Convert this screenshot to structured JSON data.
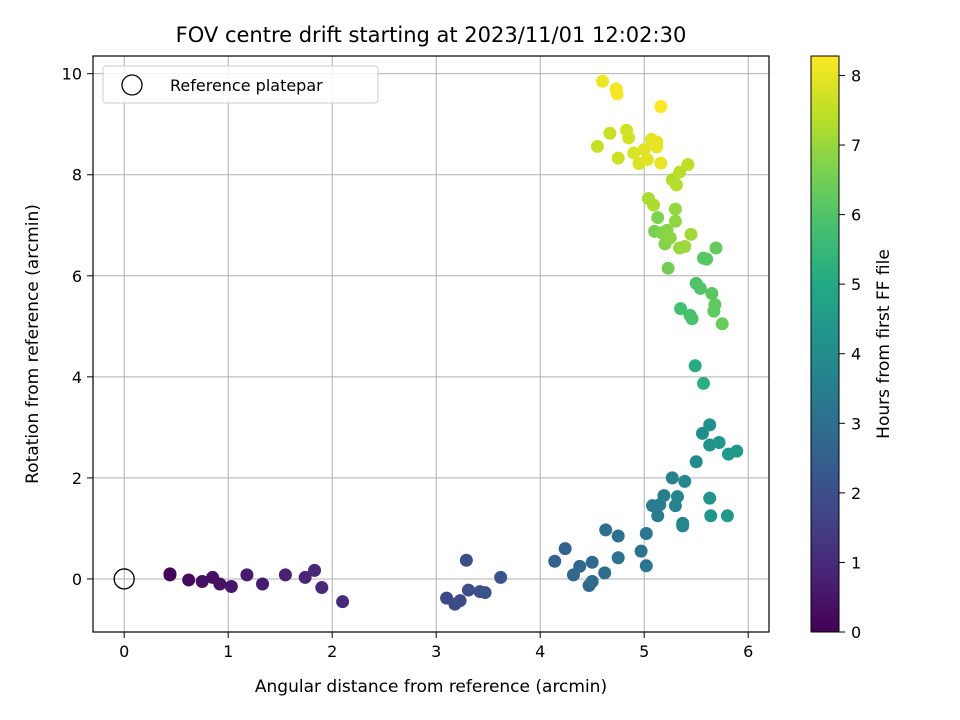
{
  "chart_data": {
    "type": "scatter",
    "title": "FOV centre drift starting at 2023/11/01 12:02:30",
    "xlabel": "Angular distance from reference (arcmin)",
    "ylabel": "Rotation from reference (arcmin)",
    "xlim": [
      -0.3,
      6.2
    ],
    "ylim": [
      -1.05,
      10.35
    ],
    "x_ticks": [
      0,
      1,
      2,
      3,
      4,
      5,
      6
    ],
    "y_ticks": [
      0,
      2,
      4,
      6,
      8,
      10
    ],
    "grid": true,
    "legend": {
      "placement": "top-left",
      "entries": [
        "Reference platepar"
      ]
    },
    "reference_point": {
      "name": "Reference platepar",
      "x": 0,
      "y": 0
    },
    "colorbar": {
      "label": "Hours from first FF file",
      "colormap": "viridis",
      "range": [
        0,
        8.28
      ],
      "ticks": [
        0,
        1,
        2,
        3,
        4,
        5,
        6,
        7,
        8
      ]
    },
    "points": [
      {
        "x": 0.44,
        "y": 0.1,
        "t": 0.05
      },
      {
        "x": 0.44,
        "y": 0.08,
        "t": 0.1
      },
      {
        "x": 0.62,
        "y": -0.02,
        "t": 0.2
      },
      {
        "x": 0.75,
        "y": -0.05,
        "t": 0.3
      },
      {
        "x": 0.85,
        "y": 0.03,
        "t": 0.35
      },
      {
        "x": 0.92,
        "y": -0.1,
        "t": 0.4
      },
      {
        "x": 1.03,
        "y": -0.15,
        "t": 0.5
      },
      {
        "x": 1.18,
        "y": 0.08,
        "t": 0.6
      },
      {
        "x": 1.33,
        "y": -0.1,
        "t": 0.65
      },
      {
        "x": 1.55,
        "y": 0.08,
        "t": 0.75
      },
      {
        "x": 1.74,
        "y": 0.03,
        "t": 0.85
      },
      {
        "x": 1.83,
        "y": 0.17,
        "t": 0.9
      },
      {
        "x": 1.9,
        "y": -0.17,
        "t": 1.0
      },
      {
        "x": 2.1,
        "y": -0.45,
        "t": 1.05
      },
      {
        "x": 3.1,
        "y": -0.38,
        "t": 1.8
      },
      {
        "x": 3.18,
        "y": -0.5,
        "t": 1.85
      },
      {
        "x": 3.23,
        "y": -0.43,
        "t": 1.9
      },
      {
        "x": 3.29,
        "y": 0.37,
        "t": 1.95
      },
      {
        "x": 3.31,
        "y": -0.22,
        "t": 2.0
      },
      {
        "x": 3.42,
        "y": -0.25,
        "t": 2.05
      },
      {
        "x": 3.47,
        "y": -0.27,
        "t": 2.1
      },
      {
        "x": 3.62,
        "y": 0.03,
        "t": 2.15
      },
      {
        "x": 4.14,
        "y": 0.35,
        "t": 2.6
      },
      {
        "x": 4.24,
        "y": 0.6,
        "t": 2.65
      },
      {
        "x": 4.32,
        "y": 0.08,
        "t": 2.7
      },
      {
        "x": 4.38,
        "y": 0.25,
        "t": 2.75
      },
      {
        "x": 4.47,
        "y": -0.13,
        "t": 2.8
      },
      {
        "x": 4.5,
        "y": 0.33,
        "t": 2.85
      },
      {
        "x": 4.5,
        "y": -0.05,
        "t": 2.9
      },
      {
        "x": 4.62,
        "y": 0.12,
        "t": 2.95
      },
      {
        "x": 4.63,
        "y": 0.97,
        "t": 3.0
      },
      {
        "x": 4.75,
        "y": 0.85,
        "t": 3.05
      },
      {
        "x": 4.75,
        "y": 0.42,
        "t": 3.1
      },
      {
        "x": 4.97,
        "y": 0.55,
        "t": 3.15
      },
      {
        "x": 5.02,
        "y": 0.9,
        "t": 3.2
      },
      {
        "x": 5.02,
        "y": 0.26,
        "t": 3.25
      },
      {
        "x": 5.08,
        "y": 1.45,
        "t": 3.4
      },
      {
        "x": 5.13,
        "y": 1.25,
        "t": 3.45
      },
      {
        "x": 5.15,
        "y": 1.47,
        "t": 3.5
      },
      {
        "x": 5.19,
        "y": 1.65,
        "t": 3.55
      },
      {
        "x": 5.27,
        "y": 2.0,
        "t": 3.6
      },
      {
        "x": 5.3,
        "y": 1.45,
        "t": 3.65
      },
      {
        "x": 5.32,
        "y": 1.63,
        "t": 3.7
      },
      {
        "x": 5.37,
        "y": 1.1,
        "t": 3.75
      },
      {
        "x": 5.37,
        "y": 1.05,
        "t": 3.8
      },
      {
        "x": 5.39,
        "y": 1.93,
        "t": 3.85
      },
      {
        "x": 5.5,
        "y": 2.32,
        "t": 3.95
      },
      {
        "x": 5.56,
        "y": 2.88,
        "t": 4.05
      },
      {
        "x": 5.63,
        "y": 3.05,
        "t": 4.15
      },
      {
        "x": 5.63,
        "y": 2.65,
        "t": 4.2
      },
      {
        "x": 5.63,
        "y": 1.6,
        "t": 4.25
      },
      {
        "x": 5.64,
        "y": 1.25,
        "t": 4.3
      },
      {
        "x": 5.72,
        "y": 2.7,
        "t": 4.35
      },
      {
        "x": 5.8,
        "y": 1.25,
        "t": 4.4
      },
      {
        "x": 5.81,
        "y": 2.47,
        "t": 4.45
      },
      {
        "x": 5.89,
        "y": 2.53,
        "t": 4.5
      },
      {
        "x": 5.49,
        "y": 4.22,
        "t": 5.1
      },
      {
        "x": 5.57,
        "y": 3.87,
        "t": 5.2
      },
      {
        "x": 5.35,
        "y": 5.35,
        "t": 5.8
      },
      {
        "x": 5.44,
        "y": 5.22,
        "t": 5.85
      },
      {
        "x": 5.46,
        "y": 5.15,
        "t": 5.9
      },
      {
        "x": 5.5,
        "y": 5.85,
        "t": 5.95
      },
      {
        "x": 5.54,
        "y": 5.75,
        "t": 6.0
      },
      {
        "x": 5.57,
        "y": 6.35,
        "t": 6.05
      },
      {
        "x": 5.6,
        "y": 6.33,
        "t": 6.1
      },
      {
        "x": 5.65,
        "y": 5.65,
        "t": 6.15
      },
      {
        "x": 5.67,
        "y": 5.3,
        "t": 6.2
      },
      {
        "x": 5.68,
        "y": 5.43,
        "t": 6.25
      },
      {
        "x": 5.69,
        "y": 6.55,
        "t": 6.3
      },
      {
        "x": 5.75,
        "y": 5.05,
        "t": 6.35
      },
      {
        "x": 5.23,
        "y": 6.15,
        "t": 6.5
      },
      {
        "x": 5.1,
        "y": 6.88,
        "t": 6.6
      },
      {
        "x": 5.13,
        "y": 7.15,
        "t": 6.65
      },
      {
        "x": 5.17,
        "y": 6.85,
        "t": 6.7
      },
      {
        "x": 5.2,
        "y": 6.63,
        "t": 6.75
      },
      {
        "x": 5.22,
        "y": 6.9,
        "t": 6.8
      },
      {
        "x": 5.25,
        "y": 6.75,
        "t": 6.85
      },
      {
        "x": 5.3,
        "y": 7.08,
        "t": 6.9
      },
      {
        "x": 5.3,
        "y": 7.32,
        "t": 6.95
      },
      {
        "x": 5.34,
        "y": 6.55,
        "t": 7.0
      },
      {
        "x": 5.39,
        "y": 6.58,
        "t": 7.05
      },
      {
        "x": 5.45,
        "y": 6.82,
        "t": 7.1
      },
      {
        "x": 5.04,
        "y": 7.53,
        "t": 7.2
      },
      {
        "x": 5.09,
        "y": 7.4,
        "t": 7.25
      },
      {
        "x": 5.27,
        "y": 7.9,
        "t": 7.3
      },
      {
        "x": 5.31,
        "y": 7.8,
        "t": 7.35
      },
      {
        "x": 5.34,
        "y": 8.05,
        "t": 7.4
      },
      {
        "x": 5.42,
        "y": 8.2,
        "t": 7.45
      },
      {
        "x": 4.55,
        "y": 8.56,
        "t": 7.55
      },
      {
        "x": 4.67,
        "y": 8.82,
        "t": 7.6
      },
      {
        "x": 4.75,
        "y": 8.33,
        "t": 7.65
      },
      {
        "x": 4.83,
        "y": 8.88,
        "t": 7.7
      },
      {
        "x": 4.85,
        "y": 8.73,
        "t": 7.75
      },
      {
        "x": 4.9,
        "y": 8.43,
        "t": 7.8
      },
      {
        "x": 4.95,
        "y": 8.22,
        "t": 7.85
      },
      {
        "x": 5.0,
        "y": 8.5,
        "t": 7.9
      },
      {
        "x": 5.03,
        "y": 8.3,
        "t": 7.92
      },
      {
        "x": 5.07,
        "y": 8.7,
        "t": 7.95
      },
      {
        "x": 5.12,
        "y": 8.55,
        "t": 7.98
      },
      {
        "x": 5.12,
        "y": 8.65,
        "t": 8.0
      },
      {
        "x": 5.16,
        "y": 8.23,
        "t": 8.02
      },
      {
        "x": 4.6,
        "y": 9.85,
        "t": 8.1
      },
      {
        "x": 4.73,
        "y": 9.7,
        "t": 8.15
      },
      {
        "x": 4.74,
        "y": 9.6,
        "t": 8.2
      },
      {
        "x": 5.16,
        "y": 9.35,
        "t": 8.25
      }
    ]
  }
}
